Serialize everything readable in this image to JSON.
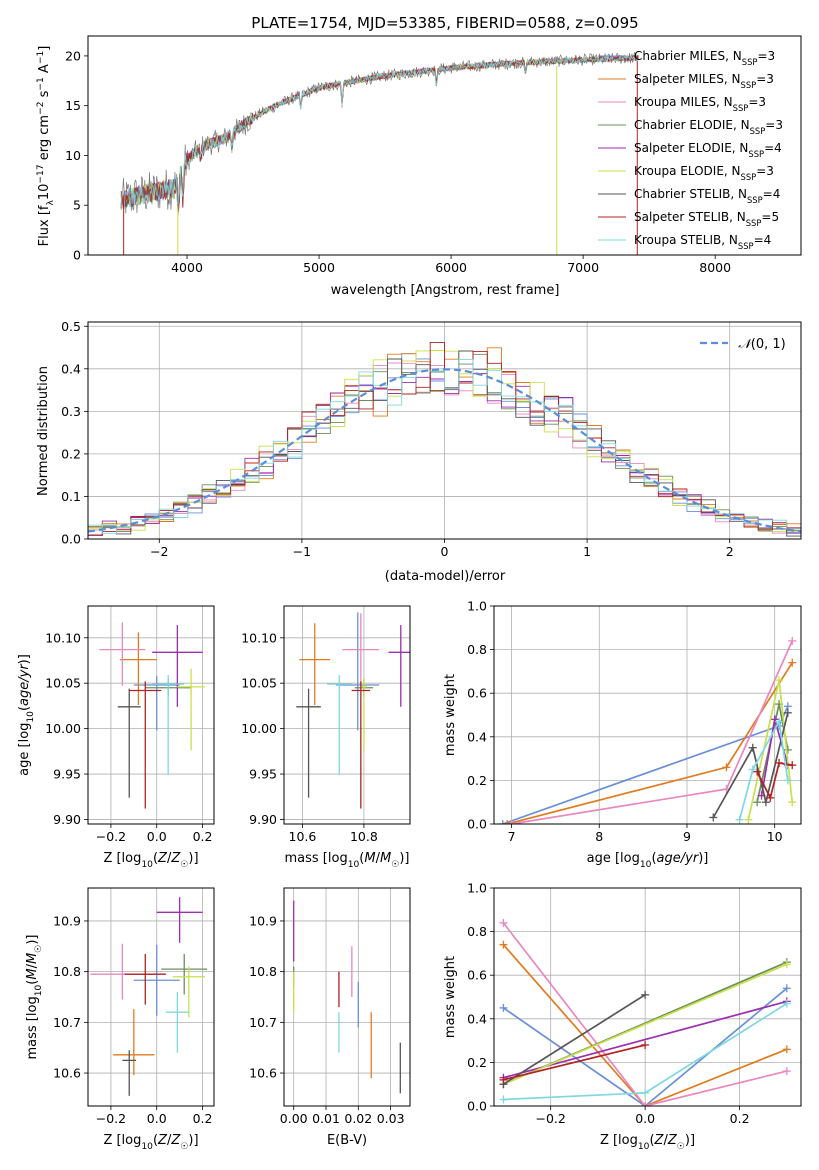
{
  "figure": {
    "title": "PLATE=1754, MJD=53385, FIBERID=0588, z=0.095"
  },
  "models": [
    {
      "name": "Chabrier MILES",
      "nssp": "3",
      "color": "#6a8fd8"
    },
    {
      "name": "Salpeter MILES",
      "nssp": "3",
      "color": "#e07b1f"
    },
    {
      "name": "Kroupa MILES",
      "nssp": "3",
      "color": "#e887c0"
    },
    {
      "name": "Chabrier ELODIE",
      "nssp": "3",
      "color": "#6b8f5a"
    },
    {
      "name": "Salpeter ELODIE",
      "nssp": "4",
      "color": "#9b2fae"
    },
    {
      "name": "Kroupa ELODIE",
      "nssp": "3",
      "color": "#c9e04a"
    },
    {
      "name": "Chabrier STELIB",
      "nssp": "4",
      "color": "#555555"
    },
    {
      "name": "Salpeter STELIB",
      "nssp": "5",
      "color": "#b22222"
    },
    {
      "name": "Kroupa STELIB",
      "nssp": "4",
      "color": "#7fd8df"
    }
  ],
  "chart_data": [
    {
      "id": "spectrum",
      "type": "line",
      "xlabel": "wavelength [Angstrom, rest frame]",
      "ylabel": "Flux [f_λ 10^-17 erg cm^-2 s^-1 A^-1]",
      "xlim": [
        3250,
        8650
      ],
      "ylim": [
        0,
        22
      ],
      "xticks": [
        4000,
        5000,
        6000,
        7000,
        8000
      ],
      "yticks": [
        0,
        5,
        10,
        15,
        20
      ],
      "legend_position": "right",
      "approx_continuum": {
        "x": [
          3500,
          3700,
          3900,
          4000,
          4100,
          4300,
          4500,
          4700,
          5000,
          5200,
          5500,
          6000,
          6500,
          7000,
          7400
        ],
        "y": [
          5.5,
          6.2,
          6.8,
          9.5,
          10.8,
          11.8,
          13.8,
          15.2,
          16.8,
          17.3,
          18.0,
          18.8,
          19.3,
          19.6,
          19.8
        ]
      }
    },
    {
      "id": "residuals",
      "type": "line",
      "xlabel": "(data-model)/error",
      "ylabel": "Normed distribution",
      "xlim": [
        -2.5,
        2.5
      ],
      "ylim": [
        0,
        0.51
      ],
      "xticks": [
        -2,
        -1,
        0,
        1,
        2
      ],
      "yticks": [
        0.0,
        0.1,
        0.2,
        0.3,
        0.4,
        0.5
      ],
      "grid": true,
      "legend_label": "N(0,1)",
      "legend_position": "top-right",
      "bin_width": 0.1
    },
    {
      "id": "age_vs_Z",
      "type": "scatter",
      "xlabel": "Z [log10(Z/Z☉)]",
      "ylabel": "age  [log10(age/yr)]",
      "xlim": [
        -0.3,
        0.25
      ],
      "ylim": [
        9.895,
        10.135
      ],
      "xticks": [
        -0.2,
        0.0,
        0.2
      ],
      "yticks": [
        9.9,
        9.95,
        10.0,
        10.05,
        10.1
      ],
      "grid": true,
      "points": [
        {
          "x": 0.0,
          "y": 10.048,
          "xerr": 0.1,
          "yerr": [
            0.05,
            0.01
          ]
        },
        {
          "x": -0.08,
          "y": 10.076,
          "xerr": 0.08,
          "yerr": [
            0.05,
            0.03
          ]
        },
        {
          "x": -0.15,
          "y": 10.087,
          "xerr": 0.1,
          "yerr": [
            0.04,
            0.03
          ]
        },
        {
          "x": 0.05,
          "y": 10.045,
          "xerr": 0.1,
          "yerr": [
            0.01,
            0.01
          ]
        },
        {
          "x": 0.09,
          "y": 10.084,
          "xerr": 0.11,
          "yerr": [
            0.06,
            0.03
          ]
        },
        {
          "x": 0.15,
          "y": 10.046,
          "xerr": 0.06,
          "yerr": [
            0.07,
            0.02
          ]
        },
        {
          "x": -0.12,
          "y": 10.024,
          "xerr": 0.05,
          "yerr": [
            0.1,
            0.02
          ]
        },
        {
          "x": -0.05,
          "y": 10.042,
          "xerr": 0.07,
          "yerr": [
            0.13,
            0.01
          ]
        },
        {
          "x": 0.05,
          "y": 10.049,
          "xerr": 0.07,
          "yerr": [
            0.1,
            0.01
          ]
        }
      ]
    },
    {
      "id": "age_vs_mass",
      "type": "scatter",
      "xlabel": "mass [log10(M/M☉)]",
      "ylabel": "",
      "xlim": [
        10.54,
        10.95
      ],
      "ylim": [
        9.895,
        10.135
      ],
      "xticks": [
        10.6,
        10.8
      ],
      "yticks": [
        9.9,
        9.95,
        10.0,
        10.05,
        10.1
      ],
      "grid": true,
      "points": [
        {
          "x": 10.78,
          "y": 10.048,
          "xerr": 0.07,
          "yerr": [
            0.05,
            0.08
          ]
        },
        {
          "x": 10.64,
          "y": 10.076,
          "xerr": 0.05,
          "yerr": [
            0.05,
            0.04
          ]
        },
        {
          "x": 10.79,
          "y": 10.087,
          "xerr": 0.06,
          "yerr": [
            0.04,
            0.04
          ]
        },
        {
          "x": 10.8,
          "y": 10.045,
          "xerr": 0.03,
          "yerr": [
            0.01,
            0.01
          ]
        },
        {
          "x": 10.92,
          "y": 10.084,
          "xerr": 0.04,
          "yerr": [
            0.06,
            0.03
          ]
        },
        {
          "x": 10.8,
          "y": 10.046,
          "xerr": 0.01,
          "yerr": [
            0.07,
            0.01
          ]
        },
        {
          "x": 10.62,
          "y": 10.024,
          "xerr": 0.04,
          "yerr": [
            0.1,
            0.02
          ]
        },
        {
          "x": 10.79,
          "y": 10.042,
          "xerr": 0.03,
          "yerr": [
            0.13,
            0.01
          ]
        },
        {
          "x": 10.72,
          "y": 10.049,
          "xerr": 0.04,
          "yerr": [
            0.1,
            0.01
          ]
        }
      ]
    },
    {
      "id": "weight_vs_age",
      "type": "line",
      "xlabel": "age  [log10(age/yr)]",
      "ylabel": "mass weight",
      "xlim": [
        6.8,
        10.3
      ],
      "ylim": [
        0,
        1.0
      ],
      "xticks": [
        7,
        8,
        9,
        10
      ],
      "yticks": [
        0.0,
        0.2,
        0.4,
        0.6,
        0.8,
        1.0
      ],
      "grid": true,
      "series": [
        {
          "x": [
            6.9,
            10.05,
            10.15
          ],
          "y": [
            0.0,
            0.45,
            0.54
          ]
        },
        {
          "x": [
            6.95,
            9.45,
            10.2
          ],
          "y": [
            0.0,
            0.26,
            0.74
          ]
        },
        {
          "x": [
            7.0,
            9.45,
            10.2
          ],
          "y": [
            0.0,
            0.16,
            0.84
          ]
        },
        {
          "x": [
            9.8,
            10.05,
            10.15
          ],
          "y": [
            0.1,
            0.55,
            0.34
          ]
        },
        {
          "x": [
            9.85,
            10.0,
            10.15
          ],
          "y": [
            0.13,
            0.48,
            0.27
          ]
        },
        {
          "x": [
            9.7,
            10.05,
            10.2
          ],
          "y": [
            0.02,
            0.66,
            0.1
          ]
        },
        {
          "x": [
            9.3,
            9.75,
            9.9,
            10.15
          ],
          "y": [
            0.03,
            0.35,
            0.1,
            0.51
          ]
        },
        {
          "x": [
            9.8,
            9.95,
            10.05,
            10.2
          ],
          "y": [
            0.24,
            0.12,
            0.28,
            0.27
          ]
        },
        {
          "x": [
            9.6,
            9.75,
            10.05,
            10.15
          ],
          "y": [
            0.02,
            0.25,
            0.47,
            0.2
          ]
        }
      ]
    },
    {
      "id": "mass_vs_Z",
      "type": "scatter",
      "xlabel": "Z [log10(Z/Z☉)]",
      "ylabel": "mass [log10(M/M☉)]",
      "xlim": [
        -0.3,
        0.25
      ],
      "ylim": [
        10.535,
        10.965
      ],
      "xticks": [
        -0.2,
        0.0,
        0.2
      ],
      "yticks": [
        10.6,
        10.7,
        10.8,
        10.9
      ],
      "grid": true,
      "points": [
        {
          "x": 0.0,
          "y": 10.783,
          "xerr": 0.1,
          "yerr": [
            0.07,
            0.07
          ]
        },
        {
          "x": -0.1,
          "y": 10.636,
          "xerr": 0.09,
          "yerr": [
            0.04,
            0.09
          ]
        },
        {
          "x": -0.15,
          "y": 10.795,
          "xerr": 0.14,
          "yerr": [
            0.05,
            0.06
          ]
        },
        {
          "x": 0.12,
          "y": 10.805,
          "xerr": 0.1,
          "yerr": [
            0.05,
            0.03
          ]
        },
        {
          "x": 0.1,
          "y": 10.917,
          "xerr": 0.1,
          "yerr": [
            0.06,
            0.03
          ]
        },
        {
          "x": 0.14,
          "y": 10.79,
          "xerr": 0.07,
          "yerr": [
            0.08,
            0.02
          ]
        },
        {
          "x": -0.12,
          "y": 10.625,
          "xerr": 0.03,
          "yerr": [
            0.07,
            0.02
          ]
        },
        {
          "x": -0.05,
          "y": 10.795,
          "xerr": 0.09,
          "yerr": [
            0.06,
            0.04
          ]
        },
        {
          "x": 0.09,
          "y": 10.72,
          "xerr": 0.05,
          "yerr": [
            0.08,
            0.04
          ]
        }
      ]
    },
    {
      "id": "mass_vs_ebv",
      "type": "scatter",
      "xlabel": "E(B-V)",
      "ylabel": "",
      "xlim": [
        -0.003,
        0.036
      ],
      "ylim": [
        10.535,
        10.965
      ],
      "xticks": [
        0.0,
        0.01,
        0.02,
        0.03
      ],
      "yticks": [
        10.6,
        10.7,
        10.8,
        10.9
      ],
      "grid": true,
      "points": [
        {
          "x": 0.02,
          "y": 10.74,
          "yerr": [
            0.05,
            0.04
          ]
        },
        {
          "x": 0.024,
          "y": 10.66,
          "yerr": [
            0.07,
            0.06
          ]
        },
        {
          "x": 0.018,
          "y": 10.8,
          "yerr": [
            0.05,
            0.05
          ]
        },
        {
          "x": 0.0,
          "y": 10.79,
          "yerr": [
            0.02,
            0.02
          ]
        },
        {
          "x": 0.0,
          "y": 10.9,
          "yerr": [
            0.08,
            0.04
          ]
        },
        {
          "x": 0.0,
          "y": 10.76,
          "yerr": [
            0.04,
            0.04
          ]
        },
        {
          "x": 0.033,
          "y": 10.61,
          "yerr": [
            0.05,
            0.05
          ]
        },
        {
          "x": 0.014,
          "y": 10.76,
          "yerr": [
            0.03,
            0.04
          ]
        },
        {
          "x": 0.014,
          "y": 10.68,
          "yerr": [
            0.04,
            0.04
          ]
        }
      ]
    },
    {
      "id": "weight_vs_Z",
      "type": "line",
      "xlabel": "Z [log10(Z/Z☉)]",
      "ylabel": "mass weight",
      "xlim": [
        -0.32,
        0.33
      ],
      "ylim": [
        0,
        1.0
      ],
      "xticks": [
        -0.2,
        0.0,
        0.2
      ],
      "yticks": [
        0.0,
        0.2,
        0.4,
        0.6,
        0.8,
        1.0
      ],
      "grid": true,
      "series": [
        {
          "x": [
            -0.3,
            0.0,
            0.3
          ],
          "y": [
            0.45,
            0.0,
            0.54
          ]
        },
        {
          "x": [
            -0.3,
            0.0,
            0.3
          ],
          "y": [
            0.74,
            0.0,
            0.26
          ]
        },
        {
          "x": [
            -0.3,
            0.0,
            0.3
          ],
          "y": [
            0.84,
            0.0,
            0.16
          ]
        },
        {
          "x": [
            -0.3,
            0.3
          ],
          "y": [
            0.1,
            0.66
          ]
        },
        {
          "x": [
            -0.3,
            0.3
          ],
          "y": [
            0.13,
            0.48
          ]
        },
        {
          "x": [
            -0.3,
            0.3
          ],
          "y": [
            0.1,
            0.65
          ]
        },
        {
          "x": [
            -0.3,
            0.0
          ],
          "y": [
            0.1,
            0.51
          ]
        },
        {
          "x": [
            -0.3,
            0.0
          ],
          "y": [
            0.12,
            0.28
          ]
        },
        {
          "x": [
            -0.3,
            0.0,
            0.3
          ],
          "y": [
            0.03,
            0.06,
            0.47
          ]
        }
      ]
    }
  ]
}
